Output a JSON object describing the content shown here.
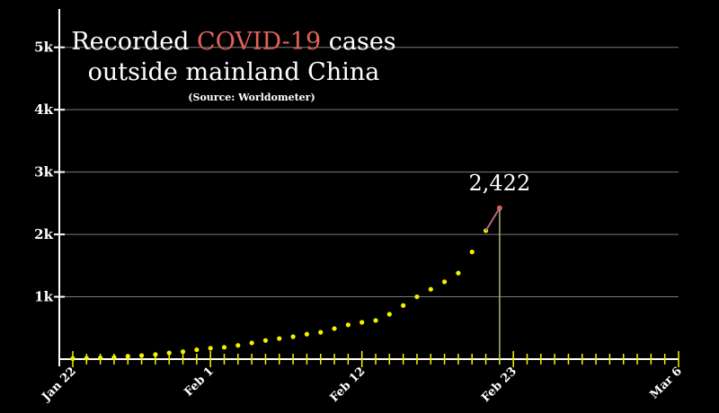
{
  "title_parts": {
    "pre": "Recorded ",
    "highlight": "COVID-19",
    "post": " cases",
    "line2": "outside mainland China"
  },
  "source": "(Source: Worldometer)",
  "colors": {
    "background": "#000000",
    "points": "#f4f200",
    "highlight_text": "#e0625a",
    "last_segment": "#b2658a",
    "marker_line": "#a8b870",
    "axis": "#ffffff",
    "grid": "#7a7a7a"
  },
  "chart_data": {
    "type": "scatter",
    "x_start": "Jan 22",
    "y_ticks": [
      {
        "v": 1000,
        "label": "1k"
      },
      {
        "v": 2000,
        "label": "2k"
      },
      {
        "v": 3000,
        "label": "3k"
      },
      {
        "v": 4000,
        "label": "4k"
      },
      {
        "v": 5000,
        "label": "5k"
      }
    ],
    "x_ticks": [
      {
        "day": 0,
        "label": "Jan 22"
      },
      {
        "day": 10,
        "label": "Feb 1"
      },
      {
        "day": 21,
        "label": "Feb 12"
      },
      {
        "day": 32,
        "label": "Feb 23"
      },
      {
        "day": 44,
        "label": "Mar 6"
      }
    ],
    "xlim": [
      0,
      44
    ],
    "ylim": [
      0,
      5500
    ],
    "values": [
      9,
      15,
      20,
      28,
      45,
      58,
      74,
      99,
      120,
      150,
      175,
      190,
      220,
      260,
      300,
      330,
      360,
      400,
      430,
      490,
      550,
      590,
      620,
      720,
      860,
      1000,
      1120,
      1240,
      1380,
      1720,
      2060,
      2422
    ],
    "final_value": 2422,
    "annotation": "2,422",
    "grid": true
  }
}
